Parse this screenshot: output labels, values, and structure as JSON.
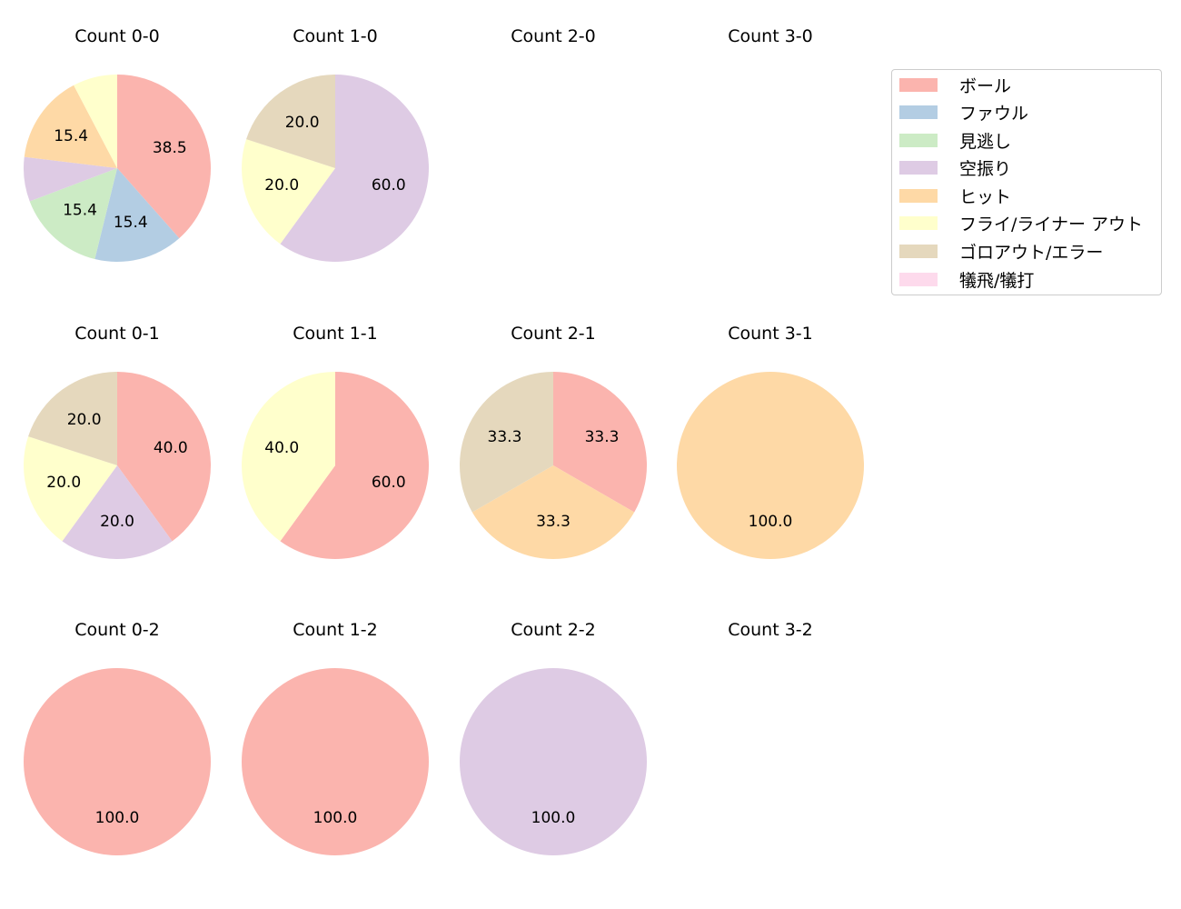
{
  "chart_data": {
    "type": "pie",
    "title": "",
    "legend": {
      "position": "upper right",
      "entries": [
        {
          "label": "ボール",
          "color": "#fbb4ae"
        },
        {
          "label": "ファウル",
          "color": "#b3cde3"
        },
        {
          "label": "見逃し",
          "color": "#ccebc5"
        },
        {
          "label": "空振り",
          "color": "#decbe4"
        },
        {
          "label": "ヒット",
          "color": "#fed9a6"
        },
        {
          "label": "フライ/ライナー アウト",
          "color": "#ffffcc"
        },
        {
          "label": "ゴロアウト/エラー",
          "color": "#e5d8bd"
        },
        {
          "label": "犠飛/犠打",
          "color": "#fddaec"
        }
      ]
    },
    "categories": [
      "ボール",
      "ファウル",
      "見逃し",
      "空振り",
      "ヒット",
      "フライ/ライナー アウト",
      "ゴロアウト/エラー",
      "犠飛/犠打"
    ],
    "label_format": "%.1f",
    "label_min_pct": 10,
    "pies": [
      {
        "title": "Count 0-0",
        "row": 0,
        "col": 0,
        "values": [
          38.5,
          15.4,
          15.4,
          7.7,
          15.4,
          7.7,
          0,
          0
        ]
      },
      {
        "title": "Count 1-0",
        "row": 0,
        "col": 1,
        "values": [
          0,
          0,
          0,
          60.0,
          0,
          20.0,
          20.0,
          0
        ]
      },
      {
        "title": "Count 2-0",
        "row": 0,
        "col": 2,
        "values": []
      },
      {
        "title": "Count 3-0",
        "row": 0,
        "col": 3,
        "values": []
      },
      {
        "title": "Count 0-1",
        "row": 1,
        "col": 0,
        "values": [
          40.0,
          0,
          0,
          20.0,
          0,
          20.0,
          20.0,
          0
        ]
      },
      {
        "title": "Count 1-1",
        "row": 1,
        "col": 1,
        "values": [
          60.0,
          0,
          0,
          0,
          0,
          40.0,
          0,
          0
        ]
      },
      {
        "title": "Count 2-1",
        "row": 1,
        "col": 2,
        "values": [
          33.3,
          0,
          0,
          0,
          33.3,
          0,
          33.3,
          0
        ]
      },
      {
        "title": "Count 3-1",
        "row": 1,
        "col": 3,
        "values": [
          0,
          0,
          0,
          0,
          100.0,
          0,
          0,
          0
        ]
      },
      {
        "title": "Count 0-2",
        "row": 2,
        "col": 0,
        "values": [
          100.0,
          0,
          0,
          0,
          0,
          0,
          0,
          0
        ]
      },
      {
        "title": "Count 1-2",
        "row": 2,
        "col": 1,
        "values": [
          100.0,
          0,
          0,
          0,
          0,
          0,
          0,
          0
        ]
      },
      {
        "title": "Count 2-2",
        "row": 2,
        "col": 2,
        "values": [
          0,
          0,
          0,
          100.0,
          0,
          0,
          0,
          0
        ]
      },
      {
        "title": "Count 3-2",
        "row": 2,
        "col": 3,
        "values": []
      }
    ]
  }
}
